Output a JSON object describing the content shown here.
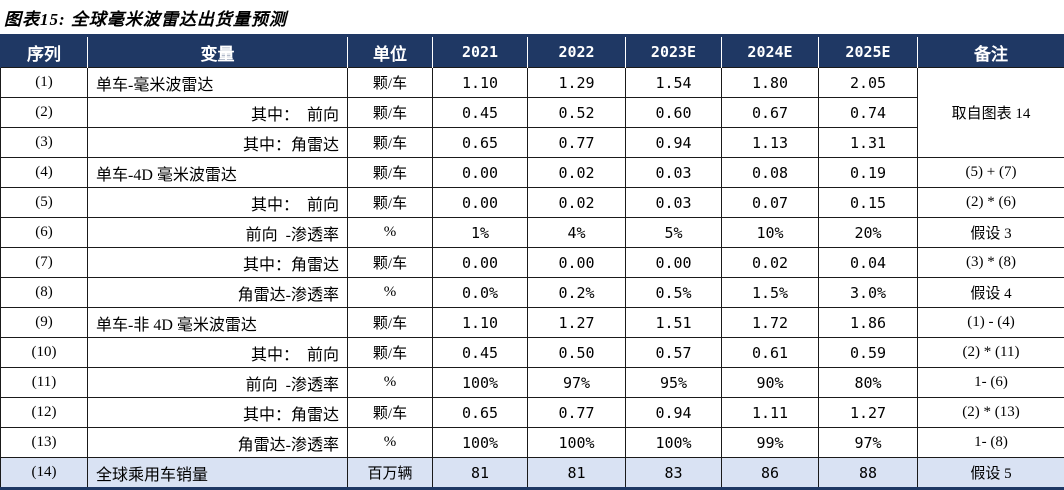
{
  "title": "图表15: 全球毫米波雷达出货量预测",
  "colors": {
    "header_bg": "#1F3864",
    "header_text": "#FFFFFF",
    "highlight_row_bg": "#D9E2F3",
    "outer_border": "#1F3864",
    "grid_line": "#1a1a1a"
  },
  "table": {
    "columns": [
      "序列",
      "变量",
      "单位",
      "2021",
      "2022",
      "2023E",
      "2024E",
      "2025E",
      "备注"
    ],
    "rows": [
      {
        "seq": "(1)",
        "variable": "单车-毫米波雷达",
        "var_align": "left",
        "unit": "颗/车",
        "values": [
          "1.10",
          "1.29",
          "1.54",
          "1.80",
          "2.05"
        ],
        "note": "取自图表 14",
        "note_rowspan": 3
      },
      {
        "seq": "(2)",
        "variable": "其中：  前向",
        "var_align": "right",
        "unit": "颗/车",
        "values": [
          "0.45",
          "0.52",
          "0.60",
          "0.67",
          "0.74"
        ],
        "note": null
      },
      {
        "seq": "(3)",
        "variable": "其中：角雷达",
        "var_align": "right",
        "unit": "颗/车",
        "values": [
          "0.65",
          "0.77",
          "0.94",
          "1.13",
          "1.31"
        ],
        "note": null
      },
      {
        "seq": "(4)",
        "variable": "单车-4D 毫米波雷达",
        "var_align": "left",
        "unit": "颗/车",
        "values": [
          "0.00",
          "0.02",
          "0.03",
          "0.08",
          "0.19"
        ],
        "note": "(5) + (7)"
      },
      {
        "seq": "(5)",
        "variable": "其中：  前向",
        "var_align": "right",
        "unit": "颗/车",
        "values": [
          "0.00",
          "0.02",
          "0.03",
          "0.07",
          "0.15"
        ],
        "note": "(2) * (6)"
      },
      {
        "seq": "(6)",
        "variable": "前向  -渗透率",
        "var_align": "right",
        "unit": "%",
        "values": [
          "1%",
          "4%",
          "5%",
          "10%",
          "20%"
        ],
        "note": "假设 3"
      },
      {
        "seq": "(7)",
        "variable": "其中：角雷达",
        "var_align": "right",
        "unit": "颗/车",
        "values": [
          "0.00",
          "0.00",
          "0.00",
          "0.02",
          "0.04"
        ],
        "note": "(3) * (8)"
      },
      {
        "seq": "(8)",
        "variable": "角雷达-渗透率",
        "var_align": "right",
        "unit": "%",
        "values": [
          "0.0%",
          "0.2%",
          "0.5%",
          "1.5%",
          "3.0%"
        ],
        "note": "假设 4"
      },
      {
        "seq": "(9)",
        "variable": "单车-非 4D 毫米波雷达",
        "var_align": "left",
        "unit": "颗/车",
        "values": [
          "1.10",
          "1.27",
          "1.51",
          "1.72",
          "1.86"
        ],
        "note": "(1) - (4)"
      },
      {
        "seq": "(10)",
        "variable": "其中：  前向",
        "var_align": "right",
        "unit": "颗/车",
        "values": [
          "0.45",
          "0.50",
          "0.57",
          "0.61",
          "0.59"
        ],
        "note": "(2) * (11)"
      },
      {
        "seq": "(11)",
        "variable": "前向  -渗透率",
        "var_align": "right",
        "unit": "%",
        "values": [
          "100%",
          "97%",
          "95%",
          "90%",
          "80%"
        ],
        "note": "1- (6)"
      },
      {
        "seq": "(12)",
        "variable": "其中：角雷达",
        "var_align": "right",
        "unit": "颗/车",
        "values": [
          "0.65",
          "0.77",
          "0.94",
          "1.11",
          "1.27"
        ],
        "note": "(2) * (13)"
      },
      {
        "seq": "(13)",
        "variable": "角雷达-渗透率",
        "var_align": "right",
        "unit": "%",
        "values": [
          "100%",
          "100%",
          "100%",
          "99%",
          "97%"
        ],
        "note": "1- (8)"
      },
      {
        "seq": "(14)",
        "variable": "全球乘用车销量",
        "var_align": "left",
        "unit": "百万辆",
        "values": [
          "81",
          "81",
          "83",
          "86",
          "88"
        ],
        "note": "假设 5",
        "highlight": true
      }
    ]
  }
}
